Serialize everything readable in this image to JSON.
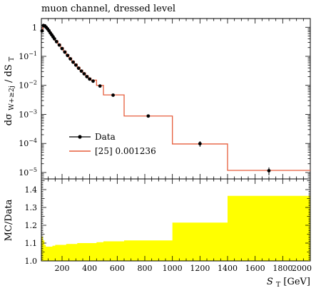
{
  "title": "muon channel, dressed level",
  "chart_data": [
    {
      "type": "line",
      "panel": "main",
      "title": "muon channel, dressed level",
      "ylabel": "dσ_{W+≥2j} / dS_T",
      "ylabel_parts": {
        "base": "dσ",
        "sub": "W+≥2j",
        "rest": " / dS",
        "rest_sub": "T"
      },
      "yscale": "log",
      "ylim": [
        6e-06,
        2
      ],
      "xlim": [
        50,
        2000
      ],
      "ytick_labels": [
        {
          "value": 1,
          "mantissa": "1",
          "exponent": ""
        },
        {
          "value": 0.1,
          "mantissa": "10",
          "exponent": "−1"
        },
        {
          "value": 0.01,
          "mantissa": "10",
          "exponent": "−2"
        },
        {
          "value": 0.001,
          "mantissa": "10",
          "exponent": "−3"
        },
        {
          "value": 0.0001,
          "mantissa": "10",
          "exponent": "−4"
        },
        {
          "value": 1e-05,
          "mantissa": "10",
          "exponent": "−5"
        }
      ],
      "legend_position": "lower-left",
      "series": [
        {
          "name": "Data",
          "kind": "points",
          "color": "#000000",
          "x": [
            55,
            65,
            75,
            85,
            95,
            105,
            115,
            125,
            135,
            145,
            160,
            180,
            200,
            220,
            240,
            260,
            280,
            300,
            320,
            340,
            360,
            380,
            400,
            425,
            475,
            570,
            825,
            1200,
            1700
          ],
          "y": [
            0.75,
            1.15,
            1.12,
            1.0,
            0.88,
            0.76,
            0.64,
            0.55,
            0.47,
            0.4,
            0.32,
            0.245,
            0.185,
            0.14,
            0.107,
            0.082,
            0.063,
            0.05,
            0.039,
            0.031,
            0.025,
            0.02,
            0.0165,
            0.014,
            0.0095,
            0.0046,
            0.00088,
            9.8e-05,
            1.15e-05
          ],
          "yerr_rel": [
            0.04,
            0.03,
            0.03,
            0.03,
            0.03,
            0.03,
            0.03,
            0.03,
            0.03,
            0.03,
            0.03,
            0.03,
            0.03,
            0.03,
            0.03,
            0.03,
            0.03,
            0.03,
            0.03,
            0.03,
            0.03,
            0.03,
            0.03,
            0.04,
            0.05,
            0.05,
            0.07,
            0.22,
            0.3
          ]
        },
        {
          "name": "[25] 0.001236",
          "kind": "histogram",
          "color": "#e65d3c",
          "bin_edges": [
            50,
            60,
            70,
            80,
            90,
            100,
            110,
            120,
            130,
            140,
            150,
            170,
            190,
            210,
            230,
            250,
            270,
            290,
            310,
            330,
            350,
            370,
            390,
            410,
            450,
            500,
            650,
            1000,
            1400,
            2000
          ],
          "values": [
            0.8,
            1.23,
            1.2,
            1.08,
            0.95,
            0.82,
            0.69,
            0.59,
            0.505,
            0.43,
            0.345,
            0.262,
            0.198,
            0.15,
            0.114,
            0.088,
            0.068,
            0.054,
            0.042,
            0.0335,
            0.027,
            0.0215,
            0.0178,
            0.0151,
            0.01,
            0.0047,
            0.00088,
            9.6e-05,
            1.18e-05
          ]
        }
      ]
    },
    {
      "type": "area",
      "panel": "ratio",
      "ylabel": "MC/Data",
      "xlabel": "S_T [GeV]",
      "xlabel_parts": {
        "var": "S",
        "sub": "T",
        "unit": " [GeV]"
      },
      "xlim": [
        50,
        2000
      ],
      "ylim": [
        1.0,
        1.46
      ],
      "x_ticks": [
        200,
        400,
        600,
        800,
        1000,
        1200,
        1400,
        1600,
        1800,
        2000
      ],
      "y_ticks": [
        {
          "value": 1.0,
          "label": "1.0"
        },
        {
          "value": 1.1,
          "label": "1.1"
        },
        {
          "value": 1.2,
          "label": "1.2"
        },
        {
          "value": 1.3,
          "label": "1.3"
        },
        {
          "value": 1.4,
          "label": "1.4"
        }
      ],
      "band_color": "#ffff00",
      "band": {
        "bin_edges": [
          50,
          60,
          70,
          80,
          90,
          100,
          110,
          120,
          130,
          140,
          150,
          170,
          190,
          210,
          230,
          250,
          270,
          290,
          310,
          330,
          350,
          370,
          390,
          410,
          450,
          500,
          650,
          1000,
          1400,
          2000
        ],
        "upper": [
          1.135,
          1.115,
          1.09,
          1.08,
          1.08,
          1.08,
          1.08,
          1.08,
          1.085,
          1.085,
          1.09,
          1.09,
          1.09,
          1.09,
          1.095,
          1.095,
          1.095,
          1.095,
          1.1,
          1.1,
          1.1,
          1.1,
          1.1,
          1.1,
          1.105,
          1.11,
          1.115,
          1.215,
          1.365
        ],
        "lower": [
          1.0,
          1.0,
          1.0,
          1.0,
          1.0,
          1.0,
          1.0,
          1.0,
          1.0,
          1.0,
          1.0,
          1.0,
          1.0,
          1.0,
          1.0,
          1.0,
          1.0,
          1.0,
          1.0,
          1.0,
          1.0,
          1.0,
          1.0,
          1.0,
          1.0,
          1.0,
          1.0,
          1.0,
          1.0
        ]
      }
    }
  ]
}
